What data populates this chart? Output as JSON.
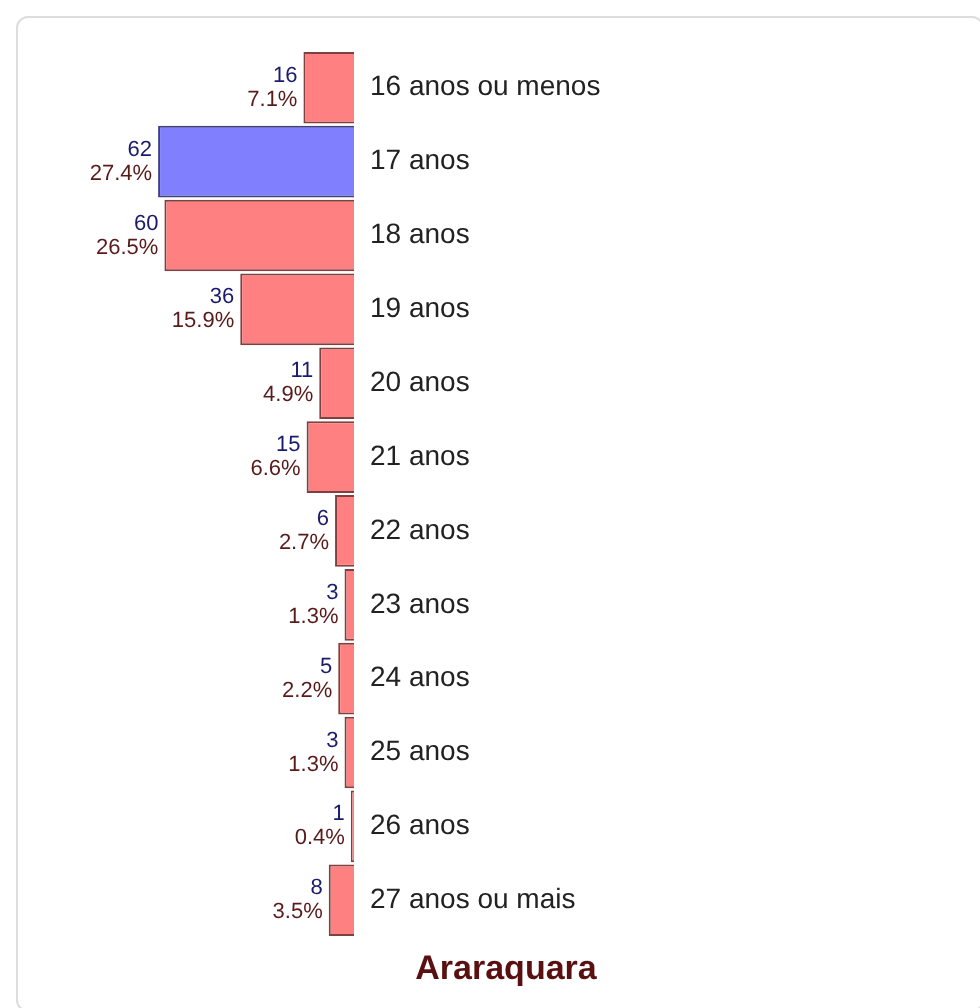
{
  "chart_data": {
    "type": "bar",
    "orientation": "horizontal",
    "title": "Araraquara",
    "categories": [
      "16 anos ou menos",
      "17 anos",
      "18 anos",
      "19 anos",
      "20 anos",
      "21 anos",
      "22 anos",
      "23 anos",
      "24 anos",
      "25 anos",
      "26 anos",
      "27 anos ou mais"
    ],
    "values": [
      16,
      62,
      60,
      36,
      11,
      15,
      6,
      3,
      5,
      3,
      1,
      8
    ],
    "colors": [
      "#ff8080",
      "#8080ff",
      "#ff8080",
      "#ff8080",
      "#ff8080",
      "#ff8080",
      "#ff8080",
      "#ff8080",
      "#ff8080",
      "#ff8080",
      "#ff8080",
      "#ff8080"
    ],
    "value_labels": [
      "16\n7.1%",
      "62\n27.4%",
      "60\n26.5%",
      "36\n15.9%",
      "11\n4.9%",
      "15\n6.6%",
      "6\n2.7%",
      "3\n1.3%",
      "5\n2.2%",
      "3\n1.3%",
      "1\n0.4%",
      "8\n3.5%"
    ],
    "legend": false,
    "grid": false
  }
}
